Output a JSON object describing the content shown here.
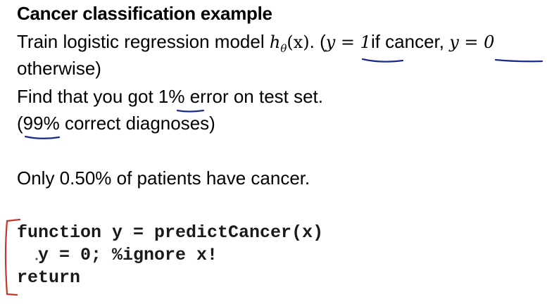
{
  "slide": {
    "title": "Cancer classification example",
    "line1": {
      "text_start": "Train logistic regression model ",
      "h_symbol": "h",
      "h_subscript": "θ",
      "h_arg": "(x)",
      "after_h": ". (",
      "y_eq_1": "y = 1",
      "if_cancer": "if cancer, ",
      "y_eq_0": "y = 0"
    },
    "line2": "otherwise)",
    "line3": {
      "pre": "Find that you got ",
      "value": "1%",
      "post": " error on test set."
    },
    "line4": {
      "pre": "(",
      "value": "99%",
      "post": " correct diagnoses)"
    },
    "line5": "Only 0.50% of patients have cancer.",
    "code": {
      "line1": "function y = predictCancer(x)",
      "line2": "  y = 0; %ignore x!",
      "line3": "return"
    },
    "annotation_color": "#1a2a8a",
    "bracket_color": "#c0392b"
  }
}
